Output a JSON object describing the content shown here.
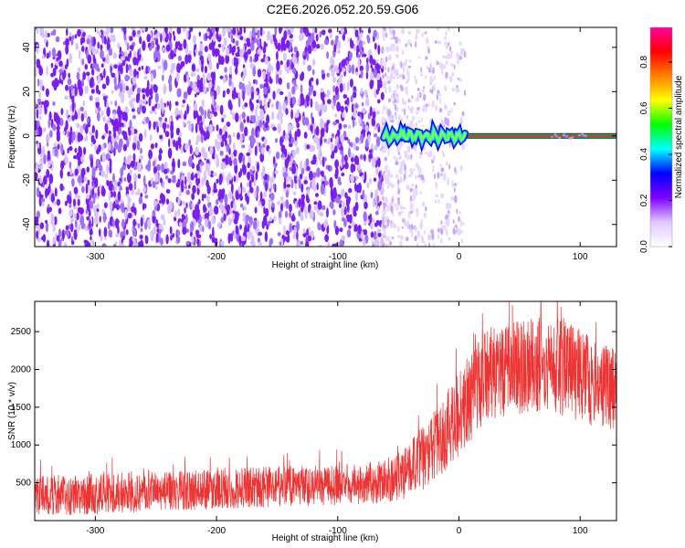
{
  "title": "C2E6.2026.052.20.59.G06",
  "chart_data": [
    {
      "type": "heatmap",
      "title": "",
      "xlabel": "Height of straight line (km)",
      "ylabel": "Frequency (Hz)",
      "xlim": [
        -350,
        130
      ],
      "ylim": [
        -50,
        49
      ],
      "xticks": [
        -300,
        -200,
        -100,
        0,
        100
      ],
      "yticks": [
        -40,
        -20,
        0,
        20,
        40
      ],
      "noise_region_x": [
        -350,
        -63
      ],
      "faint_region_x": [
        -63,
        5
      ],
      "dense_signal": {
        "x_start": -62,
        "x_end": 5,
        "center_hz": 0
      },
      "constant_line": {
        "x_start": -30,
        "x_end": 130,
        "y_hz": 0
      },
      "colorbar": {
        "label": "Normalized spectral amplitude",
        "range": [
          0.0,
          0.95
        ],
        "ticks": [
          0.0,
          0.2,
          0.4,
          0.6,
          0.8
        ],
        "colors": [
          "#ffffff",
          "#e0c8ff",
          "#8000ff",
          "#0000ff",
          "#00ffff",
          "#00ff00",
          "#ffff00",
          "#ff8000",
          "#ff0000",
          "#ff00a0"
        ]
      },
      "noise_color": "#7a1ff0"
    },
    {
      "type": "line",
      "title": "",
      "xlabel": "Height of straight line (km)",
      "ylabel": "SNR (10 * v/v)",
      "xlim": [
        -350,
        130
      ],
      "ylim": [
        0,
        2900
      ],
      "xticks": [
        -300,
        -200,
        -100,
        0,
        100
      ],
      "yticks": [
        500,
        1000,
        1500,
        2000,
        2500
      ],
      "color": "#ee3333",
      "envelope": {
        "x": [
          -350,
          -300,
          -250,
          -200,
          -150,
          -100,
          -70,
          -50,
          -40,
          -30,
          -20,
          -10,
          0,
          10,
          20,
          30,
          50,
          70,
          90,
          110,
          130
        ],
        "lower": [
          60,
          80,
          120,
          150,
          180,
          200,
          220,
          260,
          300,
          400,
          500,
          650,
          850,
          1050,
          1250,
          1350,
          1400,
          1450,
          1350,
          1250,
          1150
        ],
        "upper": [
          600,
          620,
          650,
          680,
          720,
          740,
          760,
          900,
          1050,
          1250,
          1450,
          1700,
          1950,
          2250,
          2500,
          2550,
          2650,
          2700,
          2650,
          2450,
          2250
        ]
      }
    }
  ]
}
